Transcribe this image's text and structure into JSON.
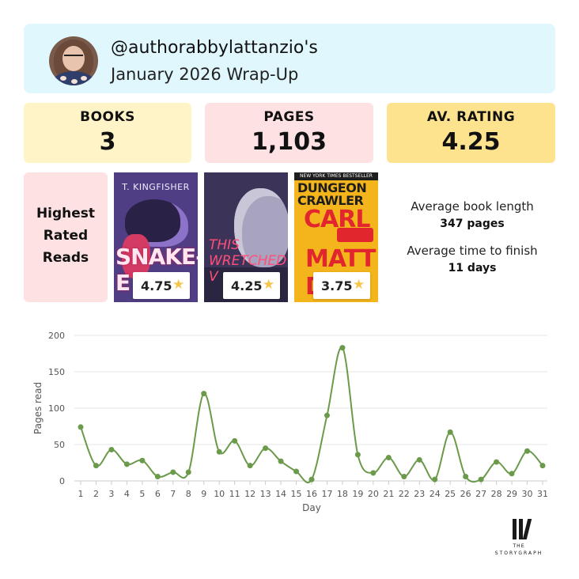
{
  "header": {
    "handle": "@authorabbylattanzio's",
    "subtitle": "January 2026 Wrap-Up",
    "bg_color": "#dff7fd"
  },
  "stats": {
    "books": {
      "label": "BOOKS",
      "value": "3",
      "color": "#fef4c8"
    },
    "pages": {
      "label": "PAGES",
      "value": "1,103",
      "color": "#fde1e3"
    },
    "rating": {
      "label": "AV. RATING",
      "value": "4.25",
      "color": "#fee38e"
    }
  },
  "highest_rated": {
    "label_lines": [
      "Highest",
      "Rated",
      "Reads"
    ],
    "books": [
      {
        "cover_author": "T. KINGFISHER",
        "cover_title": "SNAKE-E",
        "rating": "4.75",
        "star_icon": "star-icon"
      },
      {
        "cover_title": "THIS WRETCHED V",
        "rating": "4.25",
        "star_icon": "star-icon"
      },
      {
        "cover_tagline": "NEW YORK TIMES BESTSELLER",
        "cover_title_top": "DUNGEON CRAWLER",
        "cover_title_main": "CARL",
        "cover_author": "MATT D",
        "rating": "3.75",
        "star_icon": "star-icon"
      }
    ]
  },
  "summary": {
    "length_label": "Average book length",
    "length_value": "347 pages",
    "time_label": "Average time to finish",
    "time_value": "11 days"
  },
  "chart_data": {
    "type": "line",
    "xlabel": "Day",
    "ylabel": "Pages read",
    "ylim": [
      0,
      200
    ],
    "yticks": [
      0,
      50,
      100,
      150,
      200
    ],
    "x": [
      1,
      2,
      3,
      4,
      5,
      6,
      7,
      8,
      9,
      10,
      11,
      12,
      13,
      14,
      15,
      16,
      17,
      18,
      19,
      20,
      21,
      22,
      23,
      24,
      25,
      26,
      27,
      28,
      29,
      30,
      31
    ],
    "series": [
      {
        "values": [
          74,
          21,
          43,
          23,
          28,
          6,
          12,
          12,
          120,
          40,
          55,
          21,
          45,
          27,
          13,
          2,
          90,
          183,
          36,
          11,
          32,
          6,
          29,
          2,
          67,
          6,
          2,
          26,
          10,
          41,
          21
        ],
        "color": "#6a9a4a"
      }
    ],
    "grid": true
  },
  "brand": {
    "line1": "THE",
    "line2": "STORYGRAPH"
  }
}
